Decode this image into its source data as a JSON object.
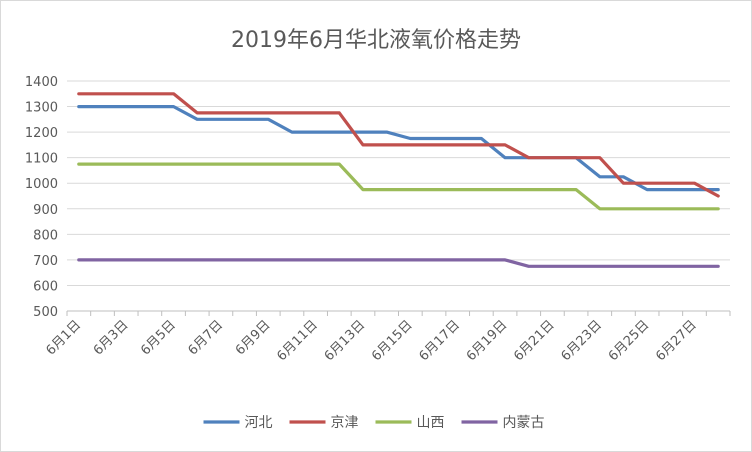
{
  "chart_data": {
    "type": "line",
    "title": "2019年6月华北液氧价格走势",
    "xlabel": "",
    "ylabel": "",
    "ylim": [
      500,
      1400
    ],
    "yticks": [
      500,
      600,
      700,
      800,
      900,
      1000,
      1100,
      1200,
      1300,
      1400
    ],
    "grid": true,
    "legend_position": "bottom",
    "x": [
      "6月1日",
      "6月2日",
      "6月3日",
      "6月4日",
      "6月5日",
      "6月6日",
      "6月7日",
      "6月8日",
      "6月9日",
      "6月10日",
      "6月11日",
      "6月12日",
      "6月13日",
      "6月14日",
      "6月15日",
      "6月16日",
      "6月17日",
      "6月18日",
      "6月19日",
      "6月20日",
      "6月21日",
      "6月22日",
      "6月23日",
      "6月24日",
      "6月25日",
      "6月26日",
      "6月27日",
      "6月28日"
    ],
    "x_tick_labels": [
      "6月1日",
      "6月3日",
      "6月5日",
      "6月7日",
      "6月9日",
      "6月11日",
      "6月13日",
      "6月15日",
      "6月17日",
      "6月19日",
      "6月21日",
      "6月23日",
      "6月25日",
      "6月27日"
    ],
    "series": [
      {
        "name": "河北",
        "color": "#4f81bd",
        "values": [
          1300,
          1300,
          1300,
          1300,
          1300,
          1250,
          1250,
          1250,
          1250,
          1200,
          1200,
          1200,
          1200,
          1200,
          1175,
          1175,
          1175,
          1175,
          1100,
          1100,
          1100,
          1100,
          1025,
          1025,
          975,
          975,
          975,
          975
        ]
      },
      {
        "name": "京津",
        "color": "#c0504d",
        "values": [
          1350,
          1350,
          1350,
          1350,
          1350,
          1275,
          1275,
          1275,
          1275,
          1275,
          1275,
          1275,
          1150,
          1150,
          1150,
          1150,
          1150,
          1150,
          1150,
          1100,
          1100,
          1100,
          1100,
          1000,
          1000,
          1000,
          1000,
          950
        ]
      },
      {
        "name": "山西",
        "color": "#9bbb59",
        "values": [
          1075,
          1075,
          1075,
          1075,
          1075,
          1075,
          1075,
          1075,
          1075,
          1075,
          1075,
          1075,
          975,
          975,
          975,
          975,
          975,
          975,
          975,
          975,
          975,
          975,
          900,
          900,
          900,
          900,
          900,
          900
        ]
      },
      {
        "name": "内蒙古",
        "color": "#8064a2",
        "values": [
          700,
          700,
          700,
          700,
          700,
          700,
          700,
          700,
          700,
          700,
          700,
          700,
          700,
          700,
          700,
          700,
          700,
          700,
          700,
          675,
          675,
          675,
          675,
          675,
          675,
          675,
          675,
          675
        ]
      }
    ]
  }
}
